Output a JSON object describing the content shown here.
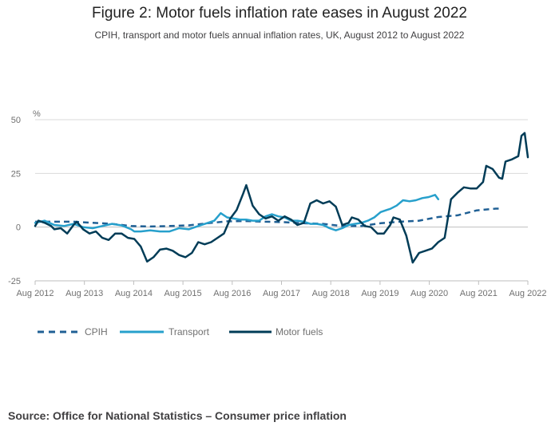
{
  "title": "Figure 2: Motor fuels inflation rate eases in August 2022",
  "subtitle": "CPIH, transport and motor fuels annual inflation rates, UK, August 2012 to August 2022",
  "source": "Source: Office for National Statistics – Consumer price inflation",
  "colors": {
    "cpih": "#206095",
    "transport": "#27a0cc",
    "motor_fuels": "#003c57",
    "grid": "#d9d9d9",
    "axis": "#bebebe",
    "text": "#707070"
  },
  "chart_data": {
    "type": "line",
    "title": "Figure 2: Motor fuels inflation rate eases in August 2022",
    "xlabel": "",
    "ylabel": "%",
    "ylim": [
      -25,
      50
    ],
    "yticks": [
      -25,
      0,
      25,
      50
    ],
    "x_tick_labels": [
      "Aug 2012",
      "Aug 2013",
      "Aug 2014",
      "Aug 2015",
      "Aug 2016",
      "Aug 2017",
      "Aug 2018",
      "Aug 2019",
      "Aug 2020",
      "Aug 2021",
      "Aug 2022"
    ],
    "x_start": "Aug 2012",
    "x_end": "Aug 2022",
    "grid": true,
    "legend": "bottom-left",
    "series": [
      {
        "name": "CPIH",
        "style": "dashed",
        "keypoints": [
          [
            0,
            2.5
          ],
          [
            12,
            2.5
          ],
          [
            24,
            1.5
          ],
          [
            30,
            0.5
          ],
          [
            36,
            0.3
          ],
          [
            42,
            0.5
          ],
          [
            48,
            0.8
          ],
          [
            54,
            1.8
          ],
          [
            60,
            2.7
          ],
          [
            66,
            2.8
          ],
          [
            72,
            2.5
          ],
          [
            78,
            2.3
          ],
          [
            84,
            1.8
          ],
          [
            90,
            1.5
          ],
          [
            96,
            0.5
          ],
          [
            102,
            0.5
          ],
          [
            108,
            1.8
          ],
          [
            114,
            2.5
          ],
          [
            120,
            3.0
          ],
          [
            126,
            4.7
          ],
          [
            132,
            5.5
          ],
          [
            138,
            7.8
          ],
          [
            144,
            8.6
          ],
          [
            146,
            8.6
          ]
        ]
      },
      {
        "name": "Transport",
        "style": "solid",
        "keypoints": [
          [
            0,
            2.0
          ],
          [
            3,
            3.0
          ],
          [
            6,
            1.0
          ],
          [
            9,
            0.5
          ],
          [
            12,
            1.5
          ],
          [
            15,
            0.0
          ],
          [
            18,
            -0.5
          ],
          [
            21,
            0.5
          ],
          [
            24,
            1.5
          ],
          [
            27,
            0.8
          ],
          [
            30,
            -1.0
          ],
          [
            31,
            -2.0
          ],
          [
            33,
            -2.0
          ],
          [
            36,
            -1.5
          ],
          [
            39,
            -2.0
          ],
          [
            42,
            -2.0
          ],
          [
            45,
            -0.5
          ],
          [
            48,
            -1.0
          ],
          [
            51,
            0.5
          ],
          [
            54,
            2.0
          ],
          [
            56,
            3.0
          ],
          [
            58,
            6.5
          ],
          [
            60,
            4.5
          ],
          [
            62,
            4.0
          ],
          [
            64,
            3.5
          ],
          [
            66,
            3.5
          ],
          [
            68,
            3.0
          ],
          [
            70,
            3.0
          ],
          [
            72,
            5.0
          ],
          [
            74,
            6.0
          ],
          [
            76,
            5.0
          ],
          [
            78,
            4.5
          ],
          [
            80,
            3.0
          ],
          [
            82,
            3.0
          ],
          [
            84,
            2.5
          ],
          [
            86,
            1.5
          ],
          [
            88,
            1.5
          ],
          [
            90,
            1.0
          ],
          [
            92,
            -0.5
          ],
          [
            94,
            -1.5
          ],
          [
            96,
            -0.5
          ],
          [
            98,
            1.0
          ],
          [
            100,
            1.5
          ],
          [
            102,
            2.0
          ],
          [
            104,
            3.0
          ],
          [
            106,
            4.5
          ],
          [
            108,
            7.0
          ],
          [
            110,
            8.0
          ],
          [
            111,
            8.5
          ],
          [
            113,
            10.0
          ],
          [
            115,
            12.5
          ],
          [
            117,
            12.0
          ],
          [
            119,
            12.5
          ],
          [
            121,
            13.5
          ],
          [
            123,
            14.0
          ],
          [
            125,
            15.0
          ],
          [
            126,
            13.0
          ]
        ]
      },
      {
        "name": "Motor fuels",
        "style": "solid",
        "keypoints": [
          [
            0,
            0.5
          ],
          [
            1,
            3.0
          ],
          [
            3,
            2.0
          ],
          [
            5,
            0.5
          ],
          [
            6,
            -1.0
          ],
          [
            8,
            -0.5
          ],
          [
            10,
            -3.0
          ],
          [
            12,
            1.0
          ],
          [
            13,
            2.5
          ],
          [
            15,
            -1.0
          ],
          [
            17,
            -3.0
          ],
          [
            19,
            -2.0
          ],
          [
            21,
            -5.0
          ],
          [
            23,
            -6.0
          ],
          [
            25,
            -3.0
          ],
          [
            27,
            -3.0
          ],
          [
            29,
            -5.0
          ],
          [
            31,
            -5.5
          ],
          [
            33,
            -9.0
          ],
          [
            35,
            -16.0
          ],
          [
            37,
            -14.0
          ],
          [
            39,
            -10.5
          ],
          [
            41,
            -10.0
          ],
          [
            43,
            -11.0
          ],
          [
            45,
            -13.0
          ],
          [
            47,
            -14.0
          ],
          [
            49,
            -12.0
          ],
          [
            51,
            -7.0
          ],
          [
            53,
            -8.0
          ],
          [
            55,
            -7.0
          ],
          [
            57,
            -5.0
          ],
          [
            59,
            -3.0
          ],
          [
            61,
            4.0
          ],
          [
            63,
            8.0
          ],
          [
            65,
            15.5
          ],
          [
            66,
            19.5
          ],
          [
            68,
            10.0
          ],
          [
            70,
            6.0
          ],
          [
            72,
            4.0
          ],
          [
            74,
            5.0
          ],
          [
            76,
            3.0
          ],
          [
            78,
            5.0
          ],
          [
            80,
            3.5
          ],
          [
            82,
            1.0
          ],
          [
            84,
            2.0
          ],
          [
            86,
            11.0
          ],
          [
            88,
            12.5
          ],
          [
            90,
            11.0
          ],
          [
            92,
            12.0
          ],
          [
            94,
            9.5
          ],
          [
            96,
            1.0
          ],
          [
            98,
            2.0
          ],
          [
            99,
            4.5
          ],
          [
            101,
            3.5
          ],
          [
            103,
            0.5
          ],
          [
            105,
            0.0
          ],
          [
            107,
            -3.0
          ],
          [
            109,
            -3.0
          ],
          [
            111,
            1.0
          ],
          [
            112,
            4.5
          ],
          [
            114,
            3.5
          ],
          [
            116,
            -4.0
          ],
          [
            118,
            -16.5
          ],
          [
            120,
            -12.0
          ],
          [
            122,
            -11.0
          ],
          [
            124,
            -10.0
          ],
          [
            126,
            -7.0
          ],
          [
            128,
            -5.0
          ],
          [
            130,
            13.0
          ],
          [
            132,
            16.0
          ],
          [
            134,
            18.5
          ],
          [
            136,
            18.0
          ],
          [
            138,
            18.0
          ],
          [
            140,
            21.0
          ],
          [
            141,
            28.5
          ],
          [
            143,
            27.0
          ],
          [
            145,
            23.0
          ],
          [
            146,
            22.5
          ],
          [
            147,
            30.5
          ],
          [
            149,
            31.5
          ],
          [
            151,
            33.0
          ],
          [
            152,
            42.5
          ],
          [
            153,
            43.8
          ],
          [
            154,
            32.5
          ]
        ]
      }
    ]
  }
}
